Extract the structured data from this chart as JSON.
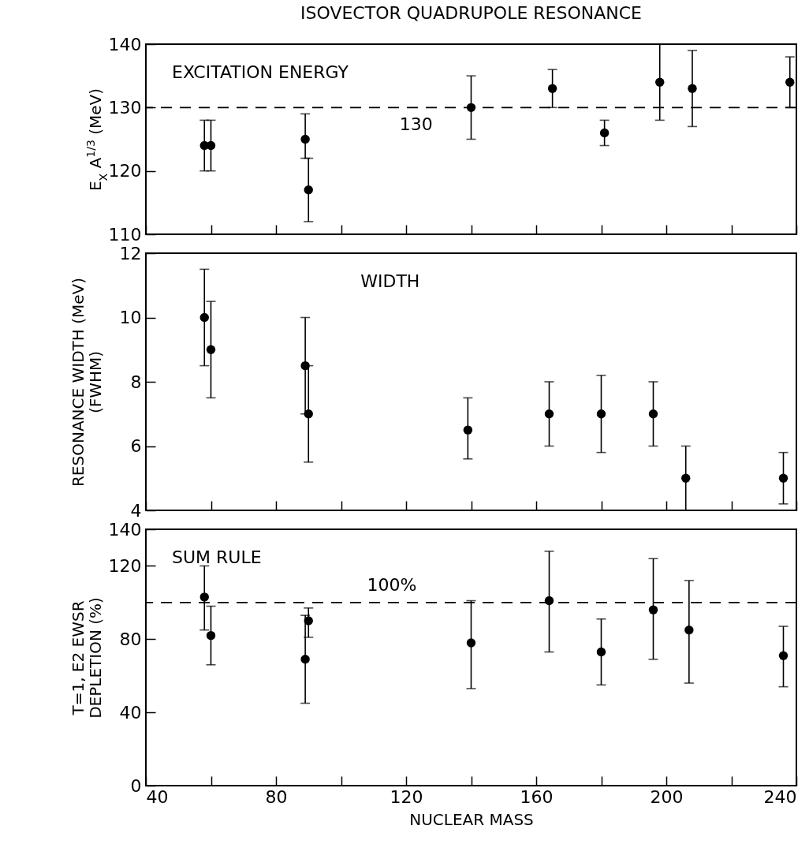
{
  "chart_data": [
    {
      "type": "scatter",
      "title": "ISOVECTOR QUADRUPOLE RESONANCE",
      "ylabel": "E$_{X}$ A$^{1/3}$ (MeV)",
      "annotations": [
        "EXCITATION ENERGY"
      ],
      "color": "#000000",
      "marker": "circle",
      "tick_labels": "y",
      "x": [
        58,
        60,
        89,
        90,
        140,
        165,
        181,
        198,
        208,
        238
      ],
      "values": [
        124,
        124,
        125,
        117,
        130,
        133,
        126,
        134,
        133,
        134
      ],
      "errors": [
        [
          120,
          128
        ],
        [
          120,
          128
        ],
        [
          122,
          129
        ],
        [
          112,
          122
        ],
        [
          125,
          135
        ],
        [
          130,
          136
        ],
        [
          124,
          128
        ],
        [
          128,
          140
        ],
        [
          127,
          139
        ],
        [
          130,
          138
        ]
      ],
      "xlim": [
        40,
        240
      ],
      "xticks": [
        40,
        {
          "value": 60,
          "label": null
        },
        80,
        {
          "value": 100,
          "label": null
        },
        120,
        {
          "value": 140,
          "label": null
        },
        160,
        {
          "value": 180,
          "label": null
        },
        200,
        {
          "value": 220,
          "label": null
        },
        240
      ],
      "ylim": [
        110,
        140
      ],
      "yticks": [
        110,
        120,
        130,
        140
      ],
      "ref_lines": [
        {
          "axis": "y",
          "value": 130,
          "label": "130",
          "line_style": "dashed"
        }
      ]
    },
    {
      "type": "scatter",
      "ylabel": "RESONANCE WIDTH  (MeV)\n(FWHM)",
      "annotations": [
        "WIDTH"
      ],
      "color": "#000000",
      "marker": "circle",
      "tick_labels": "y",
      "x": [
        58,
        60,
        89,
        90,
        139,
        164,
        180,
        196,
        206,
        236
      ],
      "values": [
        10,
        9,
        8.5,
        7,
        6.5,
        7,
        7,
        7,
        5,
        5
      ],
      "errors": [
        [
          8.5,
          11.5
        ],
        [
          7.5,
          10.5
        ],
        [
          7,
          10
        ],
        [
          5.5,
          8.5
        ],
        [
          5.6,
          7.5
        ],
        [
          6,
          8
        ],
        [
          5.8,
          8.2
        ],
        [
          6,
          8
        ],
        [
          4,
          6
        ],
        [
          4.2,
          5.8
        ]
      ],
      "xlim": [
        40,
        240
      ],
      "xticks": [
        40,
        {
          "value": 60,
          "label": null
        },
        80,
        {
          "value": 100,
          "label": null
        },
        120,
        {
          "value": 140,
          "label": null
        },
        160,
        {
          "value": 180,
          "label": null
        },
        200,
        {
          "value": 220,
          "label": null
        },
        240
      ],
      "ylim": [
        4,
        12
      ],
      "yticks": [
        4,
        6,
        8,
        10,
        12
      ]
    },
    {
      "type": "scatter",
      "xlabel": "NUCLEAR MASS",
      "ylabel": "T=1, E2  EWSR\nDEPLETION (%)",
      "annotations": [
        "SUM RULE"
      ],
      "color": "#000000",
      "marker": "circle",
      "x": [
        58,
        60,
        89,
        90,
        140,
        164,
        180,
        196,
        207,
        236
      ],
      "values": [
        103,
        82,
        69,
        90,
        78,
        101,
        73,
        96,
        85,
        71
      ],
      "errors": [
        [
          85,
          120
        ],
        [
          66,
          98
        ],
        [
          45,
          93
        ],
        [
          81,
          97
        ],
        [
          53,
          101
        ],
        [
          73,
          128
        ],
        [
          55,
          91
        ],
        [
          69,
          124
        ],
        [
          56,
          112
        ],
        [
          54,
          87
        ]
      ],
      "xlim": [
        40,
        240
      ],
      "xticks": [
        40,
        {
          "value": 60,
          "label": null
        },
        80,
        {
          "value": 100,
          "label": null
        },
        120,
        {
          "value": 140,
          "label": null
        },
        160,
        {
          "value": 180,
          "label": null
        },
        200,
        {
          "value": 220,
          "label": null
        },
        240
      ],
      "ylim": [
        0,
        140
      ],
      "yticks": [
        0,
        40,
        80,
        120,
        140
      ],
      "ref_lines": [
        {
          "axis": "y",
          "value": 100,
          "label": "100%",
          "line_style": "dashed"
        }
      ]
    }
  ]
}
